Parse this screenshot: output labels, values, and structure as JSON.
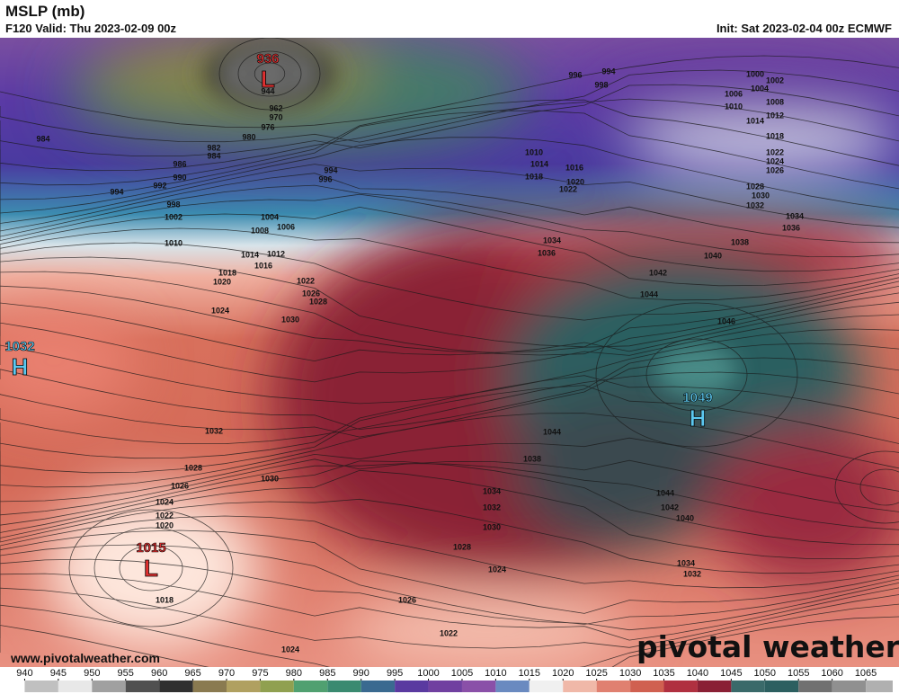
{
  "header": {
    "title": "MSLP (mb)",
    "valid": "F120 Valid: Thu 2023-02-09 00z",
    "init": "Init: Sat 2023-02-04 00z ECMWF"
  },
  "centers": [
    {
      "type": "L",
      "value": "936"
    },
    {
      "type": "H",
      "value": "1032"
    },
    {
      "type": "H",
      "value": "1049"
    },
    {
      "type": "L",
      "value": "1015"
    }
  ],
  "isobar_labels": [
    "984",
    "994",
    "992",
    "990",
    "986",
    "982",
    "984",
    "980",
    "976",
    "970",
    "962",
    "944",
    "998",
    "1002",
    "1010",
    "994",
    "996",
    "1004",
    "1008",
    "1006",
    "1014",
    "1012",
    "1016",
    "1018",
    "1020",
    "1022",
    "1026",
    "1028",
    "1024",
    "1030",
    "1032",
    "1028",
    "1026",
    "1024",
    "1022",
    "1020",
    "1018",
    "1030",
    "1034",
    "1032",
    "1030",
    "1028",
    "1024",
    "1026",
    "1022",
    "1024",
    "994",
    "998",
    "996",
    "1000",
    "1002",
    "1004",
    "1006",
    "1008",
    "1010",
    "1012",
    "1014",
    "1018",
    "1022",
    "1024",
    "1026",
    "1028",
    "1030",
    "1032",
    "1034",
    "1036",
    "1038",
    "1040",
    "1042",
    "1044",
    "1046",
    "1010",
    "1014",
    "1016",
    "1018",
    "1020",
    "1022",
    "1034",
    "1036",
    "1044",
    "1038",
    "1044",
    "1042",
    "1040",
    "1034",
    "1032"
  ],
  "footer": {
    "website": "www.pivotalweather.com",
    "logo": "pivotal weather"
  },
  "colorbar": {
    "ticks": [
      940,
      945,
      950,
      955,
      960,
      965,
      970,
      975,
      980,
      985,
      990,
      995,
      1000,
      1005,
      1010,
      1015,
      1020,
      1025,
      1030,
      1035,
      1040,
      1045,
      1050,
      1055,
      1060,
      1065
    ],
    "range": [
      937,
      1069
    ]
  }
}
